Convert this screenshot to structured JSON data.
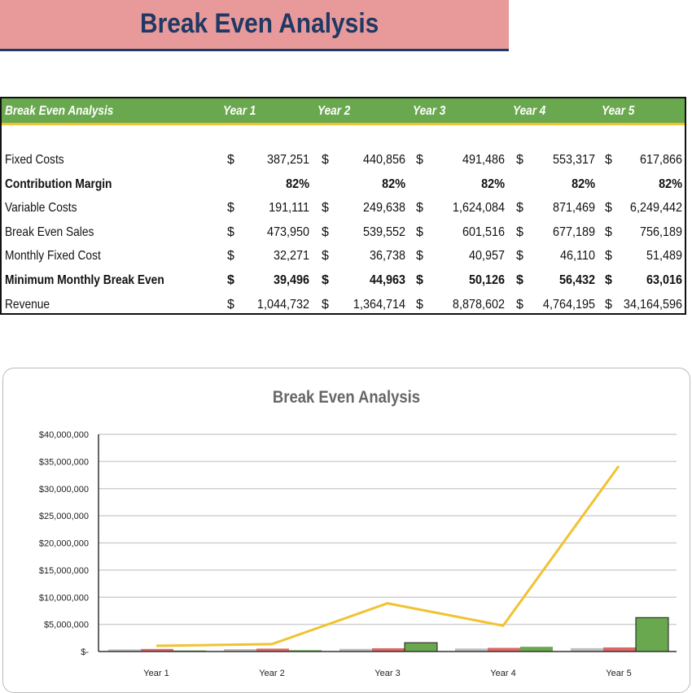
{
  "title": "Break Even Analysis",
  "table": {
    "header": [
      "Break Even Analysis",
      "Year 1",
      "Year 2",
      "Year 3",
      "Year 4",
      "Year 5"
    ],
    "rows": [
      {
        "label": "Fixed Costs",
        "bold": false,
        "currency": true,
        "values": [
          "387,251",
          "440,856",
          "491,486",
          "553,317",
          "617,866"
        ]
      },
      {
        "label": "Contribution Margin",
        "bold": true,
        "currency": false,
        "values": [
          "82%",
          "82%",
          "82%",
          "82%",
          "82%"
        ]
      },
      {
        "label": "Variable Costs",
        "bold": false,
        "currency": true,
        "values": [
          "191,111",
          "249,638",
          "1,624,084",
          "871,469",
          "6,249,442"
        ]
      },
      {
        "label": "Break Even Sales",
        "bold": false,
        "currency": true,
        "values": [
          "473,950",
          "539,552",
          "601,516",
          "677,189",
          "756,189"
        ]
      },
      {
        "label": "Monthly Fixed Cost",
        "bold": false,
        "currency": true,
        "values": [
          "32,271",
          "36,738",
          "40,957",
          "46,110",
          "51,489"
        ]
      },
      {
        "label": "Minimum Monthly Break Even",
        "bold": true,
        "currency": true,
        "values": [
          "39,496",
          "44,963",
          "50,126",
          "56,432",
          "63,016"
        ]
      },
      {
        "label": "Revenue",
        "bold": false,
        "currency": true,
        "values": [
          "1,044,732",
          "1,364,714",
          "8,878,602",
          "4,764,195",
          "34,164,596"
        ]
      }
    ],
    "currency_symbol": "$"
  },
  "chart_data": {
    "type": "bar",
    "title": "Break Even Analysis",
    "categories": [
      "Year 1",
      "Year 2",
      "Year 3",
      "Year 4",
      "Year 5"
    ],
    "ylim": [
      0,
      40000000
    ],
    "yticks": [
      "$-",
      "$5,000,000",
      "$10,000,000",
      "$15,000,000",
      "$20,000,000",
      "$25,000,000",
      "$30,000,000",
      "$35,000,000",
      "$40,000,000"
    ],
    "grid": true,
    "series": [
      {
        "type": "bar",
        "color": "#bfbfbf",
        "values": [
          387251,
          440856,
          491486,
          553317,
          617866
        ]
      },
      {
        "type": "bar",
        "color": "#e06666",
        "values": [
          473950,
          539552,
          601516,
          677189,
          756189
        ]
      },
      {
        "type": "bar",
        "color": "#6aa84f",
        "values": [
          191111,
          249638,
          1624084,
          871469,
          6249442
        ]
      },
      {
        "type": "line",
        "color": "#f1c232",
        "values": [
          1044732,
          1364714,
          8878602,
          4764195,
          34164596
        ]
      }
    ]
  }
}
